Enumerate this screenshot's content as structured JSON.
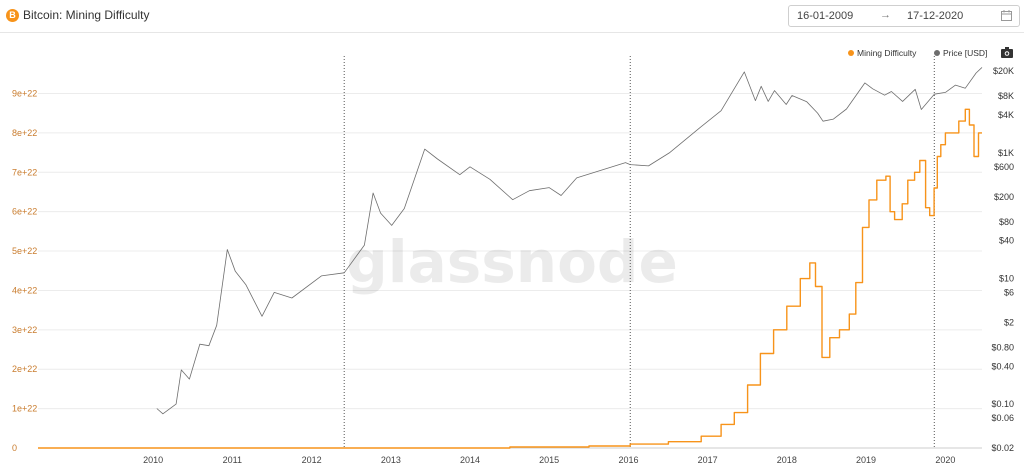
{
  "header": {
    "title": "Bitcoin: Mining Difficulty",
    "brand_icon": "bitcoin-icon",
    "brand_icon_glyph": "B",
    "date_start": "16-01-2009",
    "date_arrow": "→",
    "date_end": "17-12-2020",
    "calendar_icon": "calendar-icon"
  },
  "legend": {
    "difficulty_label": "Mining Difficulty",
    "price_label": "Price [USD]",
    "camera_icon": "camera-icon"
  },
  "colors": {
    "difficulty": "#f7931a",
    "price": "#6e6e6e",
    "left_axis_text": "#c97c2e",
    "right_axis_text": "#333333",
    "brand": "#f7931a"
  },
  "watermark": "glassnode",
  "chart_data": {
    "type": "line",
    "x_axis": {
      "type": "date",
      "range": [
        "2009-01-16",
        "2020-12-17"
      ],
      "tick_labels": [
        "2010",
        "2011",
        "2012",
        "2013",
        "2014",
        "2015",
        "2016",
        "2017",
        "2018",
        "2019",
        "2020"
      ]
    },
    "y_left": {
      "label": "",
      "scale": "linear",
      "range": [
        0,
        9.8e+22
      ],
      "ticks": [
        0,
        1e+22,
        2e+22,
        3e+22,
        4e+22,
        5e+22,
        6e+22,
        7e+22,
        8e+22,
        9e+22
      ],
      "tick_labels": [
        "0",
        "1e+22",
        "2e+22",
        "3e+22",
        "4e+22",
        "5e+22",
        "6e+22",
        "7e+22",
        "8e+22",
        "9e+22"
      ]
    },
    "y_right": {
      "label": "",
      "scale": "log",
      "range": [
        0.02,
        28000
      ],
      "ticks": [
        0.02,
        0.06,
        0.1,
        0.4,
        0.8,
        2,
        6,
        10,
        40,
        80,
        200,
        600,
        1000,
        4000,
        8000,
        20000
      ],
      "tick_labels": [
        "$0.02",
        "$0.06",
        "$0.10",
        "$0.40",
        "$0.80",
        "$2",
        "$6",
        "$10",
        "$40",
        "$80",
        "$200",
        "$600",
        "$1K",
        "$4K",
        "$8K",
        "$20K"
      ]
    },
    "halving_markers": [
      "2012-11-28",
      "2016-07-09",
      "2020-05-11"
    ],
    "grid": "horizontal",
    "legend_position": "top-right",
    "series": [
      {
        "name": "Mining Difficulty",
        "axis": "left",
        "step": true,
        "points": [
          [
            "2009-01-16",
            0
          ],
          [
            "2015-01-01",
            2.5e+20
          ],
          [
            "2016-01-01",
            5e+20
          ],
          [
            "2016-07-09",
            1e+21
          ],
          [
            "2017-01-01",
            1.6e+21
          ],
          [
            "2017-06-01",
            3e+21
          ],
          [
            "2017-09-01",
            6e+21
          ],
          [
            "2017-11-01",
            9e+21
          ],
          [
            "2018-01-01",
            1.6e+22
          ],
          [
            "2018-03-01",
            2.4e+22
          ],
          [
            "2018-05-01",
            3e+22
          ],
          [
            "2018-07-01",
            3.6e+22
          ],
          [
            "2018-09-01",
            4.3e+22
          ],
          [
            "2018-10-15",
            4.7e+22
          ],
          [
            "2018-11-10",
            4.1e+22
          ],
          [
            "2018-12-10",
            2.3e+22
          ],
          [
            "2019-01-15",
            2.8e+22
          ],
          [
            "2019-03-01",
            3e+22
          ],
          [
            "2019-04-15",
            3.4e+22
          ],
          [
            "2019-05-15",
            4.2e+22
          ],
          [
            "2019-06-15",
            5.6e+22
          ],
          [
            "2019-07-15",
            6.3e+22
          ],
          [
            "2019-08-20",
            6.8e+22
          ],
          [
            "2019-10-01",
            6.9e+22
          ],
          [
            "2019-10-20",
            6e+22
          ],
          [
            "2019-11-10",
            5.8e+22
          ],
          [
            "2019-12-15",
            6.2e+22
          ],
          [
            "2020-01-10",
            6.8e+22
          ],
          [
            "2020-02-10",
            7e+22
          ],
          [
            "2020-03-05",
            7.3e+22
          ],
          [
            "2020-04-01",
            6.1e+22
          ],
          [
            "2020-04-20",
            5.9e+22
          ],
          [
            "2020-05-10",
            6.6e+22
          ],
          [
            "2020-05-25",
            7.4e+22
          ],
          [
            "2020-06-10",
            7.7e+22
          ],
          [
            "2020-07-01",
            8e+22
          ],
          [
            "2020-08-01",
            8e+22
          ],
          [
            "2020-09-01",
            8.3e+22
          ],
          [
            "2020-10-01",
            8.6e+22
          ],
          [
            "2020-10-20",
            8.2e+22
          ],
          [
            "2020-11-10",
            7.4e+22
          ],
          [
            "2020-12-01",
            8e+22
          ],
          [
            "2020-12-17",
            8e+22
          ]
        ]
      },
      {
        "name": "Price [USD]",
        "axis": "right",
        "step": false,
        "points": [
          [
            "2010-07-18",
            0.085
          ],
          [
            "2010-08-15",
            0.07
          ],
          [
            "2010-10-15",
            0.1
          ],
          [
            "2010-11-08",
            0.35
          ],
          [
            "2010-12-15",
            0.25
          ],
          [
            "2011-02-01",
            0.9
          ],
          [
            "2011-03-15",
            0.85
          ],
          [
            "2011-04-20",
            1.8
          ],
          [
            "2011-06-08",
            29
          ],
          [
            "2011-07-15",
            13
          ],
          [
            "2011-09-01",
            8
          ],
          [
            "2011-11-15",
            2.5
          ],
          [
            "2012-01-10",
            6
          ],
          [
            "2012-04-01",
            4.9
          ],
          [
            "2012-08-15",
            11
          ],
          [
            "2012-11-28",
            12.3
          ],
          [
            "2013-03-01",
            34
          ],
          [
            "2013-04-10",
            230
          ],
          [
            "2013-05-15",
            110
          ],
          [
            "2013-07-05",
            70
          ],
          [
            "2013-09-01",
            130
          ],
          [
            "2013-12-04",
            1150
          ],
          [
            "2014-02-01",
            800
          ],
          [
            "2014-05-15",
            450
          ],
          [
            "2014-07-01",
            600
          ],
          [
            "2014-10-01",
            380
          ],
          [
            "2015-01-14",
            180
          ],
          [
            "2015-04-01",
            250
          ],
          [
            "2015-07-01",
            280
          ],
          [
            "2015-08-25",
            210
          ],
          [
            "2015-11-05",
            400
          ],
          [
            "2016-06-17",
            700
          ],
          [
            "2016-07-09",
            650
          ],
          [
            "2016-10-01",
            620
          ],
          [
            "2017-01-05",
            1000
          ],
          [
            "2017-05-25",
            2500
          ],
          [
            "2017-09-01",
            4700
          ],
          [
            "2017-12-17",
            19500
          ],
          [
            "2018-02-06",
            6800
          ],
          [
            "2018-03-05",
            11500
          ],
          [
            "2018-04-06",
            6600
          ],
          [
            "2018-05-05",
            9800
          ],
          [
            "2018-06-28",
            5900
          ],
          [
            "2018-07-25",
            8200
          ],
          [
            "2018-10-01",
            6500
          ],
          [
            "2018-11-20",
            4300
          ],
          [
            "2018-12-15",
            3200
          ],
          [
            "2019-02-01",
            3450
          ],
          [
            "2019-04-02",
            5000
          ],
          [
            "2019-06-26",
            13000
          ],
          [
            "2019-08-01",
            10500
          ],
          [
            "2019-09-25",
            8300
          ],
          [
            "2019-10-26",
            9500
          ],
          [
            "2019-12-17",
            6600
          ],
          [
            "2020-02-13",
            10300
          ],
          [
            "2020-03-12",
            4900
          ],
          [
            "2020-05-11",
            8600
          ],
          [
            "2020-07-01",
            9200
          ],
          [
            "2020-08-17",
            12000
          ],
          [
            "2020-10-01",
            10700
          ],
          [
            "2020-11-20",
            18700
          ],
          [
            "2020-12-17",
            23000
          ]
        ]
      }
    ]
  }
}
